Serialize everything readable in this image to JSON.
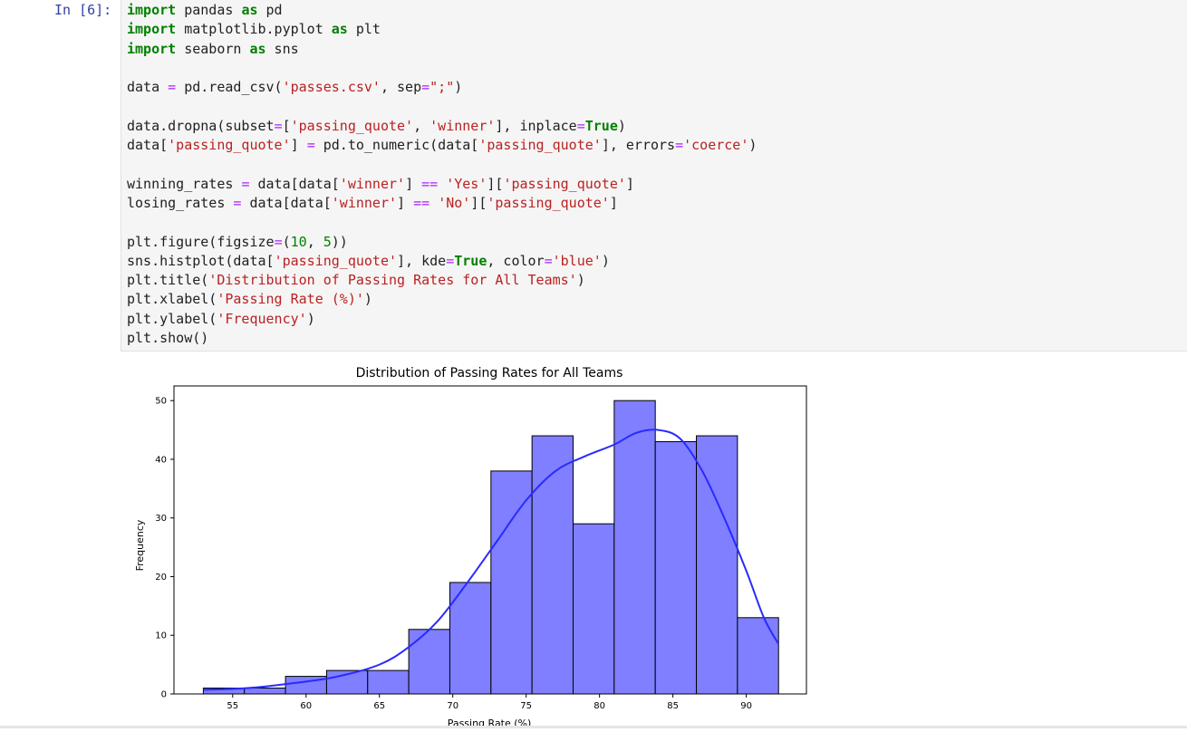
{
  "cell": {
    "prompt": "In [6]:",
    "code_lines": [
      [
        {
          "t": "kw",
          "v": "import"
        },
        {
          "t": "",
          "v": " pandas "
        },
        {
          "t": "kw",
          "v": "as"
        },
        {
          "t": "",
          "v": " pd"
        }
      ],
      [
        {
          "t": "kw",
          "v": "import"
        },
        {
          "t": "",
          "v": " matplotlib.pyplot "
        },
        {
          "t": "kw",
          "v": "as"
        },
        {
          "t": "",
          "v": " plt"
        }
      ],
      [
        {
          "t": "kw",
          "v": "import"
        },
        {
          "t": "",
          "v": " seaborn "
        },
        {
          "t": "kw",
          "v": "as"
        },
        {
          "t": "",
          "v": " sns"
        }
      ],
      [],
      [
        {
          "t": "",
          "v": "data "
        },
        {
          "t": "op",
          "v": "="
        },
        {
          "t": "",
          "v": " pd.read_csv("
        },
        {
          "t": "str",
          "v": "'passes.csv'"
        },
        {
          "t": "",
          "v": ", sep"
        },
        {
          "t": "op",
          "v": "="
        },
        {
          "t": "str",
          "v": "\";\""
        },
        {
          "t": "",
          "v": ")"
        }
      ],
      [],
      [
        {
          "t": "",
          "v": "data.dropna(subset"
        },
        {
          "t": "op",
          "v": "="
        },
        {
          "t": "",
          "v": "["
        },
        {
          "t": "str",
          "v": "'passing_quote'"
        },
        {
          "t": "",
          "v": ", "
        },
        {
          "t": "str",
          "v": "'winner'"
        },
        {
          "t": "",
          "v": "], inplace"
        },
        {
          "t": "op",
          "v": "="
        },
        {
          "t": "kw",
          "v": "True"
        },
        {
          "t": "",
          "v": ")"
        }
      ],
      [
        {
          "t": "",
          "v": "data["
        },
        {
          "t": "str",
          "v": "'passing_quote'"
        },
        {
          "t": "",
          "v": "] "
        },
        {
          "t": "op",
          "v": "="
        },
        {
          "t": "",
          "v": " pd.to_numeric(data["
        },
        {
          "t": "str",
          "v": "'passing_quote'"
        },
        {
          "t": "",
          "v": "], errors"
        },
        {
          "t": "op",
          "v": "="
        },
        {
          "t": "str",
          "v": "'coerce'"
        },
        {
          "t": "",
          "v": ")"
        }
      ],
      [],
      [
        {
          "t": "",
          "v": "winning_rates "
        },
        {
          "t": "op",
          "v": "="
        },
        {
          "t": "",
          "v": " data[data["
        },
        {
          "t": "str",
          "v": "'winner'"
        },
        {
          "t": "",
          "v": "] "
        },
        {
          "t": "op",
          "v": "=="
        },
        {
          "t": "",
          "v": " "
        },
        {
          "t": "str",
          "v": "'Yes'"
        },
        {
          "t": "",
          "v": "]["
        },
        {
          "t": "str",
          "v": "'passing_quote'"
        },
        {
          "t": "",
          "v": "]"
        }
      ],
      [
        {
          "t": "",
          "v": "losing_rates "
        },
        {
          "t": "op",
          "v": "="
        },
        {
          "t": "",
          "v": " data[data["
        },
        {
          "t": "str",
          "v": "'winner'"
        },
        {
          "t": "",
          "v": "] "
        },
        {
          "t": "op",
          "v": "=="
        },
        {
          "t": "",
          "v": " "
        },
        {
          "t": "str",
          "v": "'No'"
        },
        {
          "t": "",
          "v": "]["
        },
        {
          "t": "str",
          "v": "'passing_quote'"
        },
        {
          "t": "",
          "v": "]"
        }
      ],
      [],
      [
        {
          "t": "",
          "v": "plt.figure(figsize"
        },
        {
          "t": "op",
          "v": "="
        },
        {
          "t": "",
          "v": "("
        },
        {
          "t": "num",
          "v": "10"
        },
        {
          "t": "",
          "v": ", "
        },
        {
          "t": "num",
          "v": "5"
        },
        {
          "t": "",
          "v": "))"
        }
      ],
      [
        {
          "t": "",
          "v": "sns.histplot(data["
        },
        {
          "t": "str",
          "v": "'passing_quote'"
        },
        {
          "t": "",
          "v": "], kde"
        },
        {
          "t": "op",
          "v": "="
        },
        {
          "t": "kw",
          "v": "True"
        },
        {
          "t": "",
          "v": ", color"
        },
        {
          "t": "op",
          "v": "="
        },
        {
          "t": "str",
          "v": "'blue'"
        },
        {
          "t": "",
          "v": ")"
        }
      ],
      [
        {
          "t": "",
          "v": "plt.title("
        },
        {
          "t": "str",
          "v": "'Distribution of Passing Rates for All Teams'"
        },
        {
          "t": "",
          "v": ")"
        }
      ],
      [
        {
          "t": "",
          "v": "plt.xlabel("
        },
        {
          "t": "str",
          "v": "'Passing Rate (%)'"
        },
        {
          "t": "",
          "v": ")"
        }
      ],
      [
        {
          "t": "",
          "v": "plt.ylabel("
        },
        {
          "t": "str",
          "v": "'Frequency'"
        },
        {
          "t": "",
          "v": ")"
        }
      ],
      [
        {
          "t": "",
          "v": "plt.show()"
        }
      ]
    ]
  },
  "chart_data": {
    "type": "bar",
    "title": "Distribution of Passing Rates for All Teams",
    "xlabel": "Passing Rate (%)",
    "ylabel": "Frequency",
    "bins": [
      {
        "x0": 53.0,
        "x1": 55.8,
        "count": 1
      },
      {
        "x0": 55.8,
        "x1": 58.6,
        "count": 1
      },
      {
        "x0": 58.6,
        "x1": 61.4,
        "count": 3
      },
      {
        "x0": 61.4,
        "x1": 64.2,
        "count": 4
      },
      {
        "x0": 64.2,
        "x1": 67.0,
        "count": 4
      },
      {
        "x0": 67.0,
        "x1": 69.8,
        "count": 11
      },
      {
        "x0": 69.8,
        "x1": 72.6,
        "count": 19
      },
      {
        "x0": 72.6,
        "x1": 75.4,
        "count": 38
      },
      {
        "x0": 75.4,
        "x1": 78.2,
        "count": 44
      },
      {
        "x0": 78.2,
        "x1": 81.0,
        "count": 29
      },
      {
        "x0": 81.0,
        "x1": 83.8,
        "count": 50
      },
      {
        "x0": 83.8,
        "x1": 86.6,
        "count": 43
      },
      {
        "x0": 86.6,
        "x1": 89.4,
        "count": 44
      },
      {
        "x0": 89.4,
        "x1": 92.2,
        "count": 13
      }
    ],
    "kde": [
      [
        53.0,
        0.7
      ],
      [
        56.0,
        1.0
      ],
      [
        59.0,
        1.8
      ],
      [
        62.0,
        2.9
      ],
      [
        65.0,
        5.0
      ],
      [
        67.0,
        8.0
      ],
      [
        69.0,
        12.5
      ],
      [
        71.0,
        19.0
      ],
      [
        73.0,
        26.0
      ],
      [
        75.0,
        33.0
      ],
      [
        77.0,
        38.0
      ],
      [
        79.0,
        40.5
      ],
      [
        81.0,
        42.5
      ],
      [
        82.5,
        44.5
      ],
      [
        84.0,
        45.0
      ],
      [
        85.5,
        43.5
      ],
      [
        87.0,
        38.0
      ],
      [
        88.5,
        30.0
      ],
      [
        90.0,
        21.0
      ],
      [
        91.2,
        13.0
      ],
      [
        92.2,
        8.5
      ]
    ],
    "xticks": [
      55,
      60,
      65,
      70,
      75,
      80,
      85,
      90
    ],
    "yticks": [
      0,
      10,
      20,
      30,
      40,
      50
    ],
    "xlim": [
      51.0,
      94.1
    ],
    "ylim": [
      0,
      52.5
    ],
    "bar_fill": "#7f7fff",
    "bar_edge": "#000000",
    "kde_color": "#2a2aff",
    "grid": false
  }
}
